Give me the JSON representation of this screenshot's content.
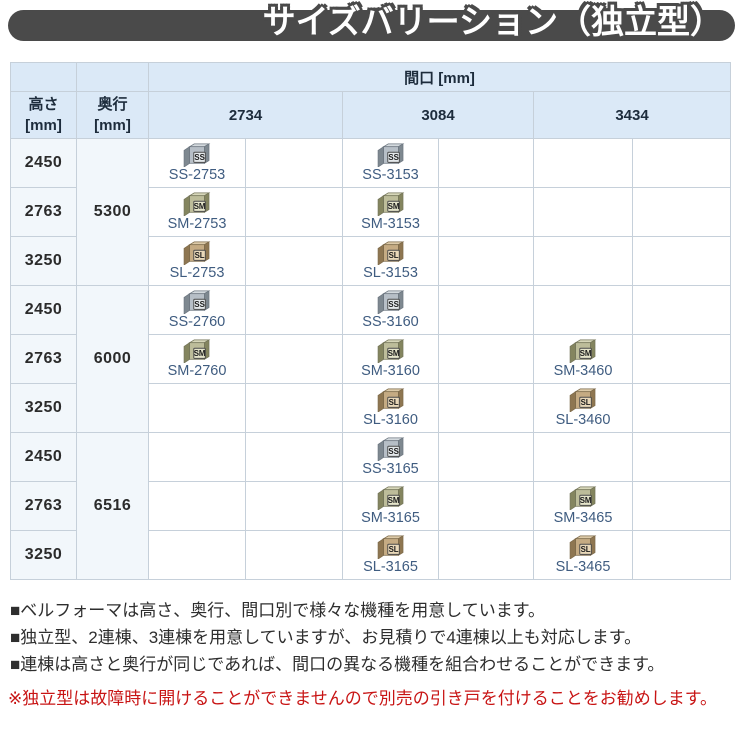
{
  "title": "サイズバリーション（独立型）",
  "table": {
    "span_header": "間口 [mm]",
    "height_header": "高さ\n[mm]",
    "depth_header": "奥行\n[mm]",
    "maguchi_values": [
      "2734",
      "3084",
      "3434"
    ],
    "groups": [
      {
        "depth": "5300",
        "rows": [
          {
            "height": "2450",
            "cells": [
              {
                "type": "SS",
                "code": "SS-2753"
              },
              {
                "type": "SS",
                "code": "SS-3153"
              },
              null
            ]
          },
          {
            "height": "2763",
            "cells": [
              {
                "type": "SM",
                "code": "SM-2753"
              },
              {
                "type": "SM",
                "code": "SM-3153"
              },
              null
            ]
          },
          {
            "height": "3250",
            "cells": [
              {
                "type": "SL",
                "code": "SL-2753"
              },
              {
                "type": "SL",
                "code": "SL-3153"
              },
              null
            ]
          }
        ]
      },
      {
        "depth": "6000",
        "rows": [
          {
            "height": "2450",
            "cells": [
              {
                "type": "SS",
                "code": "SS-2760"
              },
              {
                "type": "SS",
                "code": "SS-3160"
              },
              null
            ]
          },
          {
            "height": "2763",
            "cells": [
              {
                "type": "SM",
                "code": "SM-2760"
              },
              {
                "type": "SM",
                "code": "SM-3160"
              },
              {
                "type": "SM",
                "code": "SM-3460"
              }
            ]
          },
          {
            "height": "3250",
            "cells": [
              null,
              {
                "type": "SL",
                "code": "SL-3160"
              },
              {
                "type": "SL",
                "code": "SL-3460"
              }
            ]
          }
        ]
      },
      {
        "depth": "6516",
        "rows": [
          {
            "height": "2450",
            "cells": [
              null,
              {
                "type": "SS",
                "code": "SS-3165"
              },
              null
            ]
          },
          {
            "height": "2763",
            "cells": [
              null,
              {
                "type": "SM",
                "code": "SM-3165"
              },
              {
                "type": "SM",
                "code": "SM-3465"
              }
            ]
          },
          {
            "height": "3250",
            "cells": [
              null,
              {
                "type": "SL",
                "code": "SL-3165"
              },
              {
                "type": "SL",
                "code": "SL-3465"
              }
            ]
          }
        ]
      }
    ]
  },
  "icons": {
    "SS": {
      "label": "SS",
      "top": "#d4dade",
      "main": "#b7bfc7",
      "side": "#7e8890",
      "plaque": "#e4e8eb",
      "edge": "#6d7781"
    },
    "SM": {
      "label": "SM",
      "top": "#d7d7ba",
      "main": "#bdbd9a",
      "side": "#84855f",
      "plaque": "#e5e5ca",
      "edge": "#75765a"
    },
    "SL": {
      "label": "SL",
      "top": "#dccaa9",
      "main": "#c5ab83",
      "side": "#8e7651",
      "plaque": "#e9d8b9",
      "edge": "#7e6b4b"
    }
  },
  "notes": [
    "■ベルフォーマは高さ、奥行、間口別で様々な機種を用意しています。",
    "■独立型、2連棟、3連棟を用意していますが、お見積りで4連棟以上も対応します。",
    "■連棟は高さと奥行が同じであれば、間口の異なる機種を組合わせることができます。"
  ],
  "warning": "※独立型は故障時に開けることができませんので別売の引き戸を付けることをお勧めします。",
  "colors": {
    "title_bar": "#4a4a4a",
    "header_bg": "#dbe9f7",
    "label_bg": "#f2f7fb",
    "border": "#c6d0da",
    "link_blue": "#3f5c80",
    "warning_red": "#c81414"
  }
}
